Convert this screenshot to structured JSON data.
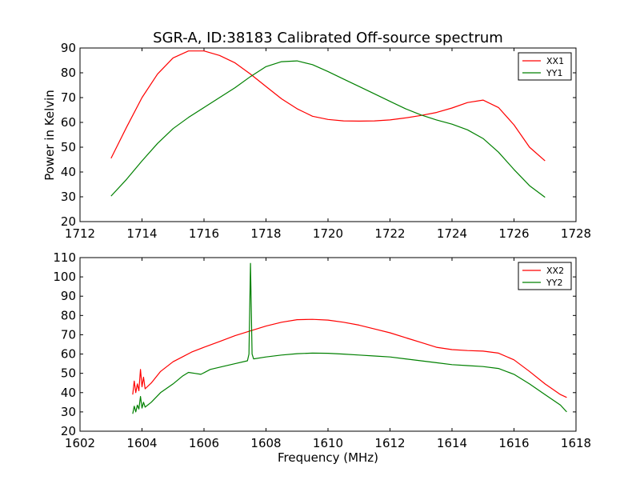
{
  "figure": {
    "title": "SGR-A, ID:38183 Calibrated Off-source spectrum",
    "ylabel": "Power in Kelvin",
    "xlabel": "Frequency (MHz)"
  },
  "chart_data": [
    {
      "type": "line",
      "title": "SGR-A, ID:38183 Calibrated Off-source spectrum",
      "xlabel": "",
      "ylabel": "Power in Kelvin",
      "xlim": [
        1712,
        1728
      ],
      "ylim": [
        20,
        90
      ],
      "xticks": [
        1712,
        1714,
        1716,
        1718,
        1720,
        1722,
        1724,
        1726,
        1728
      ],
      "yticks": [
        20,
        30,
        40,
        50,
        60,
        70,
        80,
        90
      ],
      "grid": false,
      "legend_position": "top-right",
      "series": [
        {
          "name": "XX1",
          "color": "#ff0000",
          "x": [
            1713.0,
            1713.5,
            1714.0,
            1714.5,
            1715.0,
            1715.5,
            1716.0,
            1716.5,
            1717.0,
            1717.5,
            1718.0,
            1718.5,
            1719.0,
            1719.5,
            1720.0,
            1720.5,
            1721.0,
            1721.5,
            1722.0,
            1722.5,
            1723.0,
            1723.5,
            1724.0,
            1724.5,
            1725.0,
            1725.5,
            1726.0,
            1726.5,
            1727.0
          ],
          "y": [
            45.5,
            58.0,
            70.0,
            79.5,
            86.0,
            88.8,
            88.8,
            87.0,
            84.0,
            79.5,
            74.5,
            69.5,
            65.5,
            62.5,
            61.2,
            60.6,
            60.5,
            60.6,
            61.0,
            61.8,
            62.8,
            64.0,
            65.8,
            68.0,
            69.0,
            66.0,
            59.0,
            50.0,
            44.5
          ]
        },
        {
          "name": "YY1",
          "color": "#008000",
          "x": [
            1713.0,
            1713.5,
            1714.0,
            1714.5,
            1715.0,
            1715.5,
            1716.0,
            1716.5,
            1717.0,
            1717.5,
            1718.0,
            1718.5,
            1719.0,
            1719.5,
            1720.0,
            1720.5,
            1721.0,
            1721.5,
            1722.0,
            1722.5,
            1723.0,
            1723.5,
            1724.0,
            1724.5,
            1725.0,
            1725.5,
            1726.0,
            1726.5,
            1727.0
          ],
          "y": [
            30.3,
            37.0,
            44.5,
            51.5,
            57.5,
            62.0,
            66.0,
            70.0,
            74.0,
            78.5,
            82.5,
            84.5,
            84.8,
            83.3,
            80.5,
            77.5,
            74.5,
            71.5,
            68.5,
            65.5,
            63.0,
            61.0,
            59.3,
            57.0,
            53.5,
            48.0,
            41.0,
            34.5,
            29.8
          ]
        }
      ]
    },
    {
      "type": "line",
      "title": "",
      "xlabel": "Frequency (MHz)",
      "ylabel": "",
      "xlim": [
        1602,
        1618
      ],
      "ylim": [
        20,
        110
      ],
      "xticks": [
        1602,
        1604,
        1606,
        1608,
        1610,
        1612,
        1614,
        1616,
        1618
      ],
      "yticks": [
        20,
        30,
        40,
        50,
        60,
        70,
        80,
        90,
        100,
        110
      ],
      "grid": false,
      "legend_position": "top-right",
      "series": [
        {
          "name": "XX2",
          "color": "#ff0000",
          "x": [
            1603.7,
            1603.75,
            1603.8,
            1603.85,
            1603.9,
            1603.95,
            1604.0,
            1604.05,
            1604.1,
            1604.3,
            1604.6,
            1605.0,
            1605.3,
            1605.6,
            1606.0,
            1606.5,
            1607.0,
            1607.5,
            1608.0,
            1608.5,
            1609.0,
            1609.5,
            1610.0,
            1610.5,
            1611.0,
            1611.5,
            1612.0,
            1612.5,
            1613.0,
            1613.5,
            1614.0,
            1614.5,
            1615.0,
            1615.5,
            1616.0,
            1616.5,
            1617.0,
            1617.5,
            1617.7
          ],
          "y": [
            39.0,
            46.0,
            40.0,
            44.5,
            41.0,
            52.0,
            43.0,
            48.0,
            42.0,
            45.0,
            51.0,
            56.0,
            58.5,
            61.0,
            63.5,
            66.5,
            69.5,
            72.0,
            74.5,
            76.5,
            77.8,
            78.0,
            77.6,
            76.5,
            75.0,
            73.0,
            71.0,
            68.5,
            66.0,
            63.5,
            62.3,
            61.8,
            61.5,
            60.5,
            57.0,
            51.0,
            44.5,
            39.0,
            37.5
          ]
        },
        {
          "name": "YY2",
          "color": "#008000",
          "x": [
            1603.7,
            1603.75,
            1603.8,
            1603.85,
            1603.9,
            1603.95,
            1604.0,
            1604.05,
            1604.1,
            1604.3,
            1604.6,
            1605.0,
            1605.3,
            1605.5,
            1605.7,
            1605.9,
            1606.2,
            1606.6,
            1607.0,
            1607.4,
            1607.45,
            1607.5,
            1607.55,
            1607.6,
            1608.0,
            1608.5,
            1609.0,
            1609.5,
            1610.0,
            1610.5,
            1611.0,
            1611.5,
            1612.0,
            1612.5,
            1613.0,
            1613.5,
            1614.0,
            1614.5,
            1615.0,
            1615.5,
            1616.0,
            1616.5,
            1617.0,
            1617.5,
            1617.7
          ],
          "y": [
            29.0,
            33.0,
            30.0,
            33.5,
            31.5,
            38.0,
            32.0,
            35.0,
            32.5,
            35.0,
            40.0,
            44.5,
            48.5,
            50.5,
            50.0,
            49.5,
            52.0,
            53.5,
            55.0,
            56.5,
            60.0,
            107.0,
            60.0,
            57.5,
            58.5,
            59.5,
            60.2,
            60.5,
            60.4,
            60.0,
            59.5,
            59.0,
            58.5,
            57.5,
            56.5,
            55.5,
            54.5,
            54.0,
            53.5,
            52.5,
            49.5,
            44.5,
            39.0,
            33.5,
            30.0
          ]
        }
      ]
    }
  ]
}
